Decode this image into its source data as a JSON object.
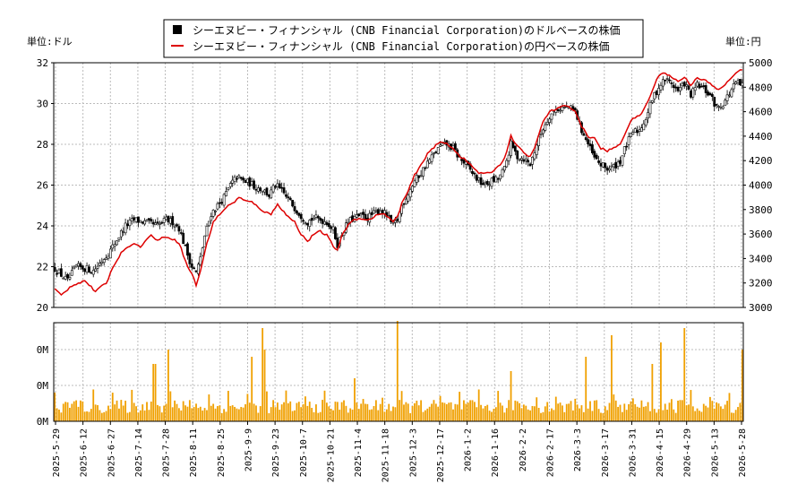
{
  "chart_data": {
    "type": "candlestick",
    "legend": {
      "placement": "top-center",
      "items": [
        {
          "label": "シーエヌビー・フィナンシャル (CNB Financial Corporation)のドルベースの株価",
          "color": "#000000",
          "marker": "square"
        },
        {
          "label": "シーエヌビー・フィナンシャル (CNB Financial Corporation)の円ベースの株価",
          "color": "#dd0000",
          "marker": "line"
        }
      ]
    },
    "left_axis": {
      "label": "単位:ドル",
      "range": [
        20,
        32
      ],
      "ticks": [
        "20",
        "22",
        "24",
        "26",
        "28",
        "30",
        "32"
      ]
    },
    "right_axis": {
      "label": "単位:円",
      "range": [
        3000,
        5000
      ],
      "ticks": [
        "3000",
        "3200",
        "3400",
        "3600",
        "3800",
        "4000",
        "4200",
        "4400",
        "4600",
        "4800",
        "5000"
      ]
    },
    "volume_axis": {
      "ticks": [
        "0M",
        "0M",
        "0M"
      ]
    },
    "grid": true,
    "x_date_labels": [
      "2025-5-29",
      "2025-6-12",
      "2025-6-27",
      "2025-7-14",
      "2025-7-28",
      "2025-8-11",
      "2025-8-25",
      "2025-9-9",
      "2025-9-23",
      "2025-10-7",
      "2025-10-21",
      "2025-11-4",
      "2025-11-18",
      "2025-12-3",
      "2025-12-17",
      "2026-1-2",
      "2026-1-16",
      "2026-2-2",
      "2026-2-17",
      "2026-3-3",
      "2026-3-17",
      "2026-3-31",
      "2026-4-15",
      "2026-4-29",
      "2026-5-13",
      "2026-5-28"
    ],
    "usd_close_anchors": [
      [
        0,
        21.9
      ],
      [
        3,
        21.6
      ],
      [
        6,
        21.3
      ],
      [
        10,
        22.0
      ],
      [
        15,
        21.9
      ],
      [
        18,
        21.8
      ],
      [
        22,
        22.3
      ],
      [
        26,
        22.8
      ],
      [
        30,
        23.5
      ],
      [
        33,
        24.0
      ],
      [
        37,
        24.3
      ],
      [
        41,
        24.2
      ],
      [
        45,
        24.1
      ],
      [
        48,
        24.0
      ],
      [
        52,
        24.3
      ],
      [
        55,
        24.2
      ],
      [
        58,
        23.9
      ],
      [
        62,
        22.6
      ],
      [
        64,
        22.0
      ],
      [
        66,
        21.7
      ],
      [
        68,
        22.4
      ],
      [
        70,
        23.5
      ],
      [
        73,
        24.6
      ],
      [
        76,
        25.0
      ],
      [
        79,
        25.4
      ],
      [
        82,
        26.0
      ],
      [
        85,
        26.4
      ],
      [
        88,
        26.2
      ],
      [
        91,
        26.1
      ],
      [
        94,
        25.9
      ],
      [
        97,
        25.8
      ],
      [
        100,
        25.5
      ],
      [
        103,
        26.0
      ],
      [
        106,
        25.7
      ],
      [
        109,
        25.3
      ],
      [
        112,
        24.9
      ],
      [
        115,
        24.5
      ],
      [
        118,
        24.2
      ],
      [
        121,
        24.4
      ],
      [
        124,
        24.3
      ],
      [
        127,
        24.2
      ],
      [
        130,
        23.8
      ],
      [
        132,
        23.1
      ],
      [
        134,
        23.6
      ],
      [
        137,
        24.2
      ],
      [
        140,
        24.4
      ],
      [
        143,
        24.5
      ],
      [
        146,
        24.4
      ],
      [
        149,
        24.6
      ],
      [
        152,
        24.8
      ],
      [
        155,
        24.5
      ],
      [
        158,
        24.0
      ],
      [
        160,
        24.3
      ],
      [
        162,
        25.0
      ],
      [
        165,
        25.6
      ],
      [
        168,
        26.2
      ],
      [
        171,
        26.6
      ],
      [
        174,
        27.1
      ],
      [
        177,
        27.5
      ],
      [
        180,
        27.9
      ],
      [
        183,
        28.0
      ],
      [
        186,
        27.8
      ],
      [
        189,
        27.3
      ],
      [
        192,
        27.0
      ],
      [
        195,
        26.6
      ],
      [
        198,
        26.2
      ],
      [
        201,
        26.0
      ],
      [
        204,
        26.2
      ],
      [
        207,
        26.3
      ],
      [
        210,
        26.8
      ],
      [
        213,
        28.0
      ],
      [
        216,
        27.4
      ],
      [
        219,
        27.3
      ],
      [
        222,
        27.0
      ],
      [
        225,
        28.0
      ],
      [
        228,
        28.8
      ],
      [
        231,
        29.4
      ],
      [
        234,
        29.7
      ],
      [
        237,
        29.8
      ],
      [
        240,
        29.8
      ],
      [
        243,
        29.6
      ],
      [
        246,
        28.7
      ],
      [
        249,
        28.0
      ],
      [
        252,
        27.3
      ],
      [
        255,
        27.0
      ],
      [
        258,
        26.8
      ],
      [
        261,
        26.9
      ],
      [
        264,
        27.2
      ],
      [
        267,
        28.0
      ],
      [
        270,
        28.6
      ],
      [
        273,
        28.7
      ],
      [
        276,
        29.3
      ],
      [
        279,
        30.2
      ],
      [
        282,
        30.8
      ],
      [
        285,
        31.2
      ],
      [
        288,
        31.0
      ],
      [
        291,
        30.6
      ],
      [
        294,
        31.0
      ],
      [
        297,
        30.4
      ],
      [
        300,
        30.9
      ],
      [
        303,
        30.7
      ],
      [
        306,
        30.4
      ],
      [
        309,
        29.8
      ],
      [
        312,
        30.0
      ],
      [
        315,
        30.5
      ],
      [
        318,
        31.0
      ],
      [
        321,
        30.9
      ]
    ],
    "jpy_anchors": [
      [
        0,
        3150
      ],
      [
        3,
        3100
      ],
      [
        8,
        3180
      ],
      [
        14,
        3220
      ],
      [
        19,
        3130
      ],
      [
        24,
        3200
      ],
      [
        28,
        3360
      ],
      [
        32,
        3470
      ],
      [
        36,
        3520
      ],
      [
        40,
        3500
      ],
      [
        45,
        3590
      ],
      [
        48,
        3550
      ],
      [
        52,
        3580
      ],
      [
        55,
        3560
      ],
      [
        58,
        3530
      ],
      [
        62,
        3330
      ],
      [
        64,
        3280
      ],
      [
        66,
        3180
      ],
      [
        68,
        3300
      ],
      [
        71,
        3520
      ],
      [
        74,
        3700
      ],
      [
        77,
        3760
      ],
      [
        80,
        3820
      ],
      [
        83,
        3850
      ],
      [
        86,
        3900
      ],
      [
        89,
        3870
      ],
      [
        92,
        3860
      ],
      [
        95,
        3820
      ],
      [
        98,
        3780
      ],
      [
        101,
        3760
      ],
      [
        104,
        3850
      ],
      [
        106,
        3800
      ],
      [
        109,
        3740
      ],
      [
        112,
        3700
      ],
      [
        115,
        3600
      ],
      [
        118,
        3540
      ],
      [
        121,
        3600
      ],
      [
        124,
        3620
      ],
      [
        127,
        3590
      ],
      [
        130,
        3500
      ],
      [
        132,
        3470
      ],
      [
        134,
        3580
      ],
      [
        137,
        3680
      ],
      [
        140,
        3720
      ],
      [
        143,
        3730
      ],
      [
        146,
        3710
      ],
      [
        149,
        3740
      ],
      [
        152,
        3770
      ],
      [
        155,
        3750
      ],
      [
        158,
        3700
      ],
      [
        160,
        3740
      ],
      [
        162,
        3850
      ],
      [
        165,
        3950
      ],
      [
        168,
        4080
      ],
      [
        171,
        4160
      ],
      [
        174,
        4260
      ],
      [
        177,
        4310
      ],
      [
        180,
        4350
      ],
      [
        183,
        4340
      ],
      [
        186,
        4300
      ],
      [
        189,
        4240
      ],
      [
        192,
        4200
      ],
      [
        195,
        4150
      ],
      [
        198,
        4100
      ],
      [
        201,
        4090
      ],
      [
        204,
        4110
      ],
      [
        207,
        4150
      ],
      [
        210,
        4220
      ],
      [
        213,
        4400
      ],
      [
        216,
        4320
      ],
      [
        219,
        4260
      ],
      [
        222,
        4230
      ],
      [
        225,
        4350
      ],
      [
        228,
        4520
      ],
      [
        231,
        4600
      ],
      [
        234,
        4620
      ],
      [
        237,
        4640
      ],
      [
        240,
        4650
      ],
      [
        243,
        4600
      ],
      [
        246,
        4480
      ],
      [
        249,
        4400
      ],
      [
        252,
        4380
      ],
      [
        255,
        4300
      ],
      [
        258,
        4280
      ],
      [
        261,
        4300
      ],
      [
        264,
        4340
      ],
      [
        267,
        4450
      ],
      [
        270,
        4550
      ],
      [
        273,
        4560
      ],
      [
        276,
        4650
      ],
      [
        279,
        4770
      ],
      [
        282,
        4900
      ],
      [
        285,
        4920
      ],
      [
        288,
        4880
      ],
      [
        291,
        4850
      ],
      [
        294,
        4880
      ],
      [
        297,
        4820
      ],
      [
        300,
        4880
      ],
      [
        303,
        4860
      ],
      [
        306,
        4830
      ],
      [
        309,
        4780
      ],
      [
        312,
        4800
      ],
      [
        315,
        4860
      ],
      [
        318,
        4920
      ],
      [
        321,
        4940
      ]
    ],
    "volume_spikes": [
      [
        46,
        8
      ],
      [
        92,
        9
      ],
      [
        47,
        8
      ],
      [
        53,
        10
      ],
      [
        97,
        13
      ],
      [
        98,
        10
      ],
      [
        140,
        6
      ],
      [
        160,
        14
      ],
      [
        213,
        7
      ],
      [
        248,
        9
      ],
      [
        260,
        12
      ],
      [
        279,
        8
      ],
      [
        283,
        11
      ],
      [
        294,
        13
      ]
    ]
  }
}
